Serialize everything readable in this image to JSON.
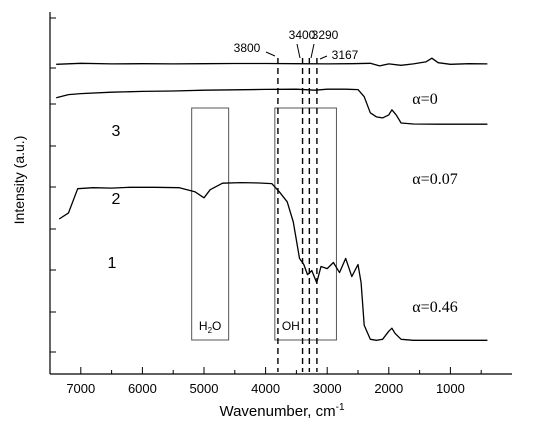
{
  "chart_data": {
    "type": "line",
    "xlabel": "Wavenumber, cm",
    "xlabel_sup": "-1",
    "ylabel": "Intensity (a.u.)",
    "x_reversed": true,
    "xlim": [
      7500,
      0
    ],
    "x_ticks": [
      "7000",
      "6000",
      "5000",
      "4000",
      "3000",
      "2000",
      "1000"
    ],
    "y_ticks_labeled": false,
    "series": [
      {
        "name": "1",
        "alpha_label": "α=0.46",
        "points": [
          [
            7350,
            0.195
          ],
          [
            7200,
            0.225
          ],
          [
            7050,
            0.345
          ],
          [
            6800,
            0.35
          ],
          [
            6500,
            0.348
          ],
          [
            6200,
            0.352
          ],
          [
            5800,
            0.352
          ],
          [
            5400,
            0.35
          ],
          [
            5150,
            0.33
          ],
          [
            5000,
            0.3
          ],
          [
            4900,
            0.34
          ],
          [
            4700,
            0.372
          ],
          [
            4400,
            0.375
          ],
          [
            4100,
            0.373
          ],
          [
            3900,
            0.37
          ],
          [
            3780,
            0.33
          ],
          [
            3650,
            0.28
          ],
          [
            3550,
            0.18
          ],
          [
            3450,
            0.0
          ],
          [
            3380,
            -0.03
          ],
          [
            3320,
            -0.08
          ],
          [
            3250,
            -0.06
          ],
          [
            3170,
            -0.12
          ],
          [
            3100,
            -0.04
          ],
          [
            3000,
            -0.05
          ],
          [
            2900,
            -0.02
          ],
          [
            2800,
            -0.07
          ],
          [
            2700,
            -0.0
          ],
          [
            2600,
            -0.09
          ],
          [
            2500,
            -0.03
          ],
          [
            2450,
            -0.12
          ],
          [
            2400,
            -0.33
          ],
          [
            2300,
            -0.4
          ],
          [
            2200,
            -0.405
          ],
          [
            2100,
            -0.4
          ],
          [
            2000,
            -0.36
          ],
          [
            1950,
            -0.345
          ],
          [
            1900,
            -0.37
          ],
          [
            1800,
            -0.4
          ],
          [
            1600,
            -0.405
          ],
          [
            1200,
            -0.405
          ],
          [
            800,
            -0.405
          ],
          [
            400,
            -0.405
          ]
        ]
      },
      {
        "name": "2",
        "alpha_label": "α=0.07",
        "points": [
          [
            7400,
            0.795
          ],
          [
            7200,
            0.81
          ],
          [
            7000,
            0.815
          ],
          [
            6500,
            0.822
          ],
          [
            6000,
            0.826
          ],
          [
            5500,
            0.828
          ],
          [
            5000,
            0.832
          ],
          [
            4500,
            0.834
          ],
          [
            4000,
            0.836
          ],
          [
            3500,
            0.837
          ],
          [
            3200,
            0.832
          ],
          [
            3000,
            0.837
          ],
          [
            2700,
            0.837
          ],
          [
            2500,
            0.835
          ],
          [
            2400,
            0.8
          ],
          [
            2300,
            0.72
          ],
          [
            2200,
            0.7
          ],
          [
            2100,
            0.695
          ],
          [
            2000,
            0.71
          ],
          [
            1950,
            0.735
          ],
          [
            1880,
            0.71
          ],
          [
            1800,
            0.67
          ],
          [
            1600,
            0.665
          ],
          [
            1200,
            0.664
          ],
          [
            800,
            0.664
          ],
          [
            400,
            0.664
          ]
        ]
      },
      {
        "name": "3",
        "alpha_label": "α=0",
        "points": [
          [
            7400,
            0.96
          ],
          [
            7000,
            0.965
          ],
          [
            6500,
            0.962
          ],
          [
            6000,
            0.963
          ],
          [
            5500,
            0.962
          ],
          [
            5000,
            0.963
          ],
          [
            4500,
            0.964
          ],
          [
            4000,
            0.964
          ],
          [
            3500,
            0.963
          ],
          [
            3000,
            0.962
          ],
          [
            2600,
            0.963
          ],
          [
            2300,
            0.965
          ],
          [
            2150,
            0.952
          ],
          [
            2000,
            0.962
          ],
          [
            1800,
            0.955
          ],
          [
            1600,
            0.962
          ],
          [
            1400,
            0.972
          ],
          [
            1300,
            0.99
          ],
          [
            1200,
            0.968
          ],
          [
            1000,
            0.96
          ],
          [
            700,
            0.963
          ],
          [
            400,
            0.962
          ]
        ]
      }
    ],
    "band_lines": [
      {
        "x": 3800,
        "label": "3800"
      },
      {
        "x": 3400,
        "label": "3400"
      },
      {
        "x": 3290,
        "label": "3290"
      },
      {
        "x": 3167,
        "label": "3167"
      }
    ],
    "regions": [
      {
        "label": "H",
        "label_sub": "2",
        "label_tail": "O",
        "x_from": 5200,
        "x_to": 4600
      },
      {
        "label": "OH",
        "x_from": 3850,
        "x_to": 2850
      }
    ]
  }
}
